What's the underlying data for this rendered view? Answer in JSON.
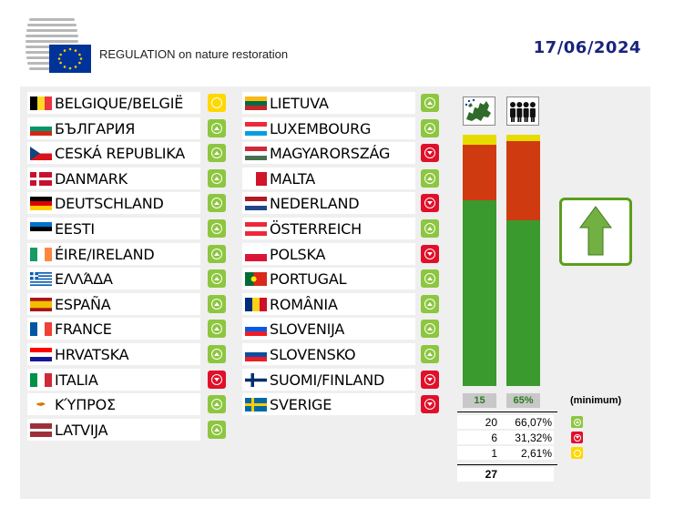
{
  "header": {
    "title": "REGULATION on nature restoration",
    "date": "17/06/2024"
  },
  "colors": {
    "yes": "#8dc63f",
    "no": "#e0102a",
    "abstain": "#ffd800",
    "bar_yes": "#3a9a2e",
    "bar_no": "#d03a10",
    "bar_abstain": "#e6dc00",
    "result_border": "#5a9e1a"
  },
  "countries_left": [
    {
      "name": "BELGIQUE/BELGIË",
      "vote": "abstain"
    },
    {
      "name": "БЪЛГАРИЯ",
      "vote": "yes"
    },
    {
      "name": "CESKÁ REPUBLIKA",
      "vote": "yes"
    },
    {
      "name": "DANMARK",
      "vote": "yes"
    },
    {
      "name": "DEUTSCHLAND",
      "vote": "yes"
    },
    {
      "name": "EESTI",
      "vote": "yes"
    },
    {
      "name": "ÉIRE/IRELAND",
      "vote": "yes"
    },
    {
      "name": "ΕΛΛΆΔΑ",
      "vote": "yes"
    },
    {
      "name": "ESPAÑA",
      "vote": "yes"
    },
    {
      "name": "FRANCE",
      "vote": "yes"
    },
    {
      "name": "HRVATSKA",
      "vote": "yes"
    },
    {
      "name": "ITALIA",
      "vote": "no"
    },
    {
      "name": "ΚΎΠΡΟΣ",
      "vote": "yes"
    },
    {
      "name": "LATVIJA",
      "vote": "yes"
    }
  ],
  "countries_right": [
    {
      "name": "LIETUVA",
      "vote": "yes"
    },
    {
      "name": "LUXEMBOURG",
      "vote": "yes"
    },
    {
      "name": "MAGYARORSZÁG",
      "vote": "no"
    },
    {
      "name": "MALTA",
      "vote": "yes"
    },
    {
      "name": "NEDERLAND",
      "vote": "no"
    },
    {
      "name": "ÖSTERREICH",
      "vote": "yes"
    },
    {
      "name": "POLSKA",
      "vote": "no"
    },
    {
      "name": "PORTUGAL",
      "vote": "yes"
    },
    {
      "name": "ROMÂNIA",
      "vote": "yes"
    },
    {
      "name": "SLOVENIJA",
      "vote": "yes"
    },
    {
      "name": "SLOVENSKO",
      "vote": "yes"
    },
    {
      "name": "SUOMI/FINLAND",
      "vote": "no"
    },
    {
      "name": "SVERIGE",
      "vote": "no"
    }
  ],
  "icons": {
    "member_states": "eu-map-icon",
    "population": "people-icon",
    "result": "arrow-up-icon"
  },
  "chart_data": {
    "type": "bar",
    "categories": [
      "member-states",
      "population"
    ],
    "series": [
      {
        "name": "yes",
        "values": [
          74,
          66.07
        ]
      },
      {
        "name": "no",
        "values": [
          22,
          31.32
        ]
      },
      {
        "name": "abstain",
        "values": [
          4,
          2.61
        ]
      }
    ],
    "ylim": [
      0,
      100
    ]
  },
  "thresholds": {
    "states_label": "15",
    "population_label": "65%",
    "minimum_label": "(minimum)"
  },
  "summary": {
    "rows": [
      {
        "count": "20",
        "percent": "66,07%",
        "vote": "yes"
      },
      {
        "count": "6",
        "percent": "31,32%",
        "vote": "no"
      },
      {
        "count": "1",
        "percent": "2,61%",
        "vote": "abstain"
      }
    ],
    "total": "27"
  }
}
